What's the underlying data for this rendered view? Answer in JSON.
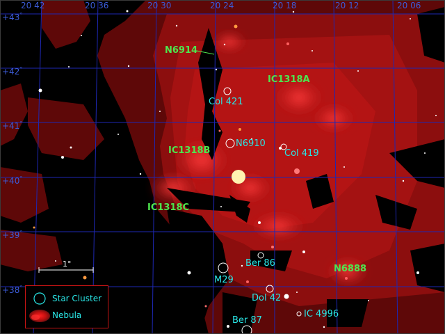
{
  "ra_labels": [
    "20 42",
    "20 36",
    "20 30",
    "20 24",
    "20 18",
    "20 12",
    "20 06"
  ],
  "dec_labels": [
    "+43",
    "+42",
    "+41",
    "+40",
    "+39",
    "+38"
  ],
  "objects": [
    {
      "name": "N6914",
      "type": "nebula"
    },
    {
      "name": "IC1318A",
      "type": "nebula"
    },
    {
      "name": "Col 421",
      "type": "star-cluster"
    },
    {
      "name": "N6910",
      "type": "star-cluster"
    },
    {
      "name": "IC1318B",
      "type": "nebula"
    },
    {
      "name": "Col 419",
      "type": "star-cluster"
    },
    {
      "name": "IC1318C",
      "type": "nebula"
    },
    {
      "name": "Ber 86",
      "type": "star-cluster"
    },
    {
      "name": "M29",
      "type": "star-cluster"
    },
    {
      "name": "N6888",
      "type": "nebula"
    },
    {
      "name": "Dol 42",
      "type": "star-cluster"
    },
    {
      "name": "IC 4996",
      "type": "star-cluster"
    },
    {
      "name": "Ber 87",
      "type": "star-cluster"
    }
  ],
  "scale": {
    "label": "1°"
  },
  "legend": {
    "star_cluster": "Star Cluster",
    "nebula": "Nebula"
  },
  "colors": {
    "grid": "#1e28b4",
    "cluster": "#29e6e6",
    "nebula_label": "#4ee64e",
    "nebula": "#b41414",
    "legend_border": "#c81414"
  }
}
